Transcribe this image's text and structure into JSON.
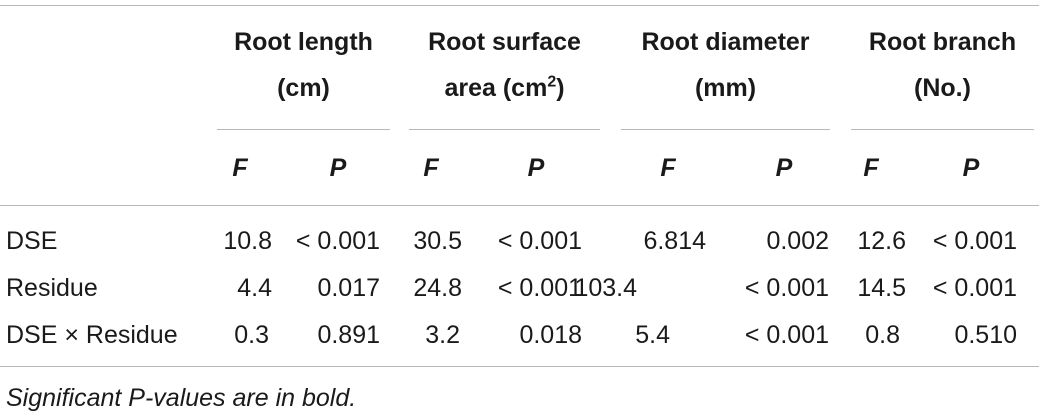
{
  "columns": [
    {
      "line1": "Root length",
      "line2": "(cm)",
      "line2_sup": ""
    },
    {
      "line1": "Root surface",
      "line2": "area (cm",
      "line2_sup": "2",
      "line2_tail": ")"
    },
    {
      "line1": "Root diameter",
      "line2": "(mm)",
      "line2_sup": ""
    },
    {
      "line1": "Root branch",
      "line2": "(No.)",
      "line2_sup": ""
    }
  ],
  "subheaders": [
    "F",
    "P",
    "F",
    "P",
    "F",
    "P",
    "F",
    "P"
  ],
  "rows": [
    {
      "label": "DSE",
      "values": [
        "10.8",
        "< 0.001",
        "30.5",
        "< 0.001",
        "6.814",
        "0.002",
        "12.6",
        "< 0.001"
      ]
    },
    {
      "label": "Residue",
      "values": [
        "4.4",
        "0.017",
        "24.8",
        "< 0.001",
        "103.4",
        "< 0.001",
        "14.5",
        "< 0.001"
      ]
    },
    {
      "label": "DSE × Residue",
      "values": [
        "0.3",
        "0.891",
        "3.2",
        "0.018",
        "5.4",
        "< 0.001",
        "0.8",
        "0.510"
      ]
    }
  ],
  "footnote": "Significant P-values are in bold."
}
